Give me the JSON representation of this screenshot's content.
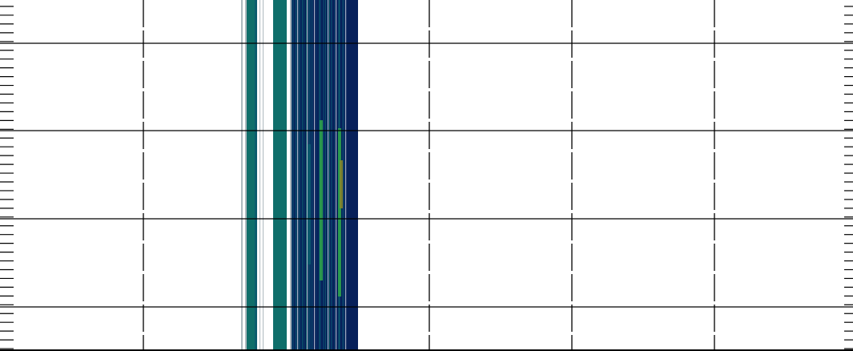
{
  "chart_data": {
    "type": "heatmap",
    "title": "",
    "xlabel": "",
    "ylabel": "",
    "grid": true,
    "legend": "none",
    "colors": {
      "background": "#ffffff",
      "gridline": "#000000",
      "low": "#07205a",
      "mid": "#0b5c6e",
      "teal": "#0f6e6a",
      "high": "#2fa84a",
      "peak": "#8a8a2a"
    },
    "stripes": [
      {
        "x0": 301,
        "x1": 303,
        "kind": "line"
      },
      {
        "x0": 306,
        "x1": 308,
        "kind": "line"
      },
      {
        "x0": 308,
        "x1": 318,
        "kind": "teal"
      },
      {
        "x0": 318,
        "x1": 321,
        "kind": "mid"
      },
      {
        "x0": 324,
        "x1": 325,
        "kind": "line"
      },
      {
        "x0": 328,
        "x1": 329,
        "kind": "line"
      },
      {
        "x0": 341,
        "x1": 358,
        "kind": "teal"
      },
      {
        "x0": 362,
        "x1": 364,
        "kind": "line"
      },
      {
        "x0": 364,
        "x1": 380,
        "kind": "mixed"
      },
      {
        "x0": 380,
        "x1": 395,
        "kind": "dense"
      },
      {
        "x0": 395,
        "x1": 430,
        "kind": "dense"
      },
      {
        "x0": 430,
        "x1": 447,
        "kind": "low"
      }
    ],
    "hotspots": [
      {
        "x": 424,
        "y0": 160,
        "y1": 370,
        "kind": "high"
      },
      {
        "x": 426,
        "y0": 200,
        "y1": 260,
        "kind": "peak"
      },
      {
        "x": 401,
        "y0": 150,
        "y1": 350,
        "kind": "high"
      },
      {
        "x": 386,
        "y0": 180,
        "y1": 330,
        "kind": "mid"
      }
    ],
    "hgrid_y": [
      54,
      163,
      273,
      383
    ],
    "vgrid_x": [
      179,
      536,
      714,
      892
    ]
  }
}
